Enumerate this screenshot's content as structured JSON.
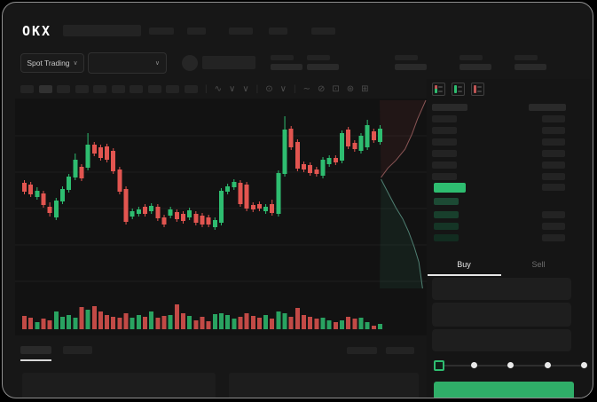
{
  "header": {
    "logo": "OKX",
    "market_selector": {
      "label": "Spot Trading",
      "chevron": "∨"
    },
    "pair_selector": {
      "chevron": "∨"
    }
  },
  "chart_toolbar": {
    "icons": [
      {
        "name": "divider",
        "glyph": "|"
      },
      {
        "name": "indicators-icon",
        "glyph": "∿"
      },
      {
        "name": "chevron-down-icon",
        "glyph": "∨"
      },
      {
        "name": "chevron-down-icon",
        "glyph": "∨"
      },
      {
        "name": "divider",
        "glyph": "|"
      },
      {
        "name": "overlay-icon",
        "glyph": "⊙"
      },
      {
        "name": "chevron-down-icon",
        "glyph": "∨"
      },
      {
        "name": "divider",
        "glyph": "|"
      },
      {
        "name": "line-tool-icon",
        "glyph": "∼"
      },
      {
        "name": "draw-tool-icon",
        "glyph": "⊘"
      },
      {
        "name": "screenshot-icon",
        "glyph": "⊡"
      },
      {
        "name": "settings-icon",
        "glyph": "⊛"
      },
      {
        "name": "fullscreen-icon",
        "glyph": "⊞"
      }
    ]
  },
  "trade_panel": {
    "buy_tab": "Buy",
    "sell_tab": "Sell",
    "slider_stops": 5,
    "slider_selected_index": 0
  },
  "colors": {
    "green": "#2ebd70",
    "red": "#e25550",
    "buy_button": "#2fae68",
    "bid_row_tints": [
      "#1c4a34",
      "#183f2c",
      "#153526",
      "#122c20"
    ],
    "depth_ask_line": "#8a5555",
    "depth_bid_line": "#4f7f72",
    "depth_ask_fill": "rgba(150,60,60,0.12)",
    "depth_bid_fill": "rgba(45,150,110,0.10)"
  },
  "chart_data": {
    "type": "candlestick+volume+depth",
    "title": "",
    "x_axis": "time (ticks not rendered - skeleton UI)",
    "y_axis": "price (ticks not rendered - skeleton UI)",
    "grid": true,
    "gridline_prices": [
      190,
      149,
      108,
      67,
      26
    ],
    "price_range": [
      0,
      232
    ],
    "candles_format": "[bodyTop, bodyBottom, high, low, color(0=red,1=green)] in price units",
    "candles": [
      [
        137,
        127,
        140,
        124,
        0
      ],
      [
        135,
        124,
        138,
        121,
        0
      ],
      [
        128,
        121,
        132,
        118,
        1
      ],
      [
        125,
        112,
        128,
        109,
        0
      ],
      [
        110,
        103,
        115,
        99,
        0
      ],
      [
        117,
        98,
        120,
        95,
        1
      ],
      [
        130,
        116,
        133,
        113,
        1
      ],
      [
        144,
        129,
        147,
        126,
        1
      ],
      [
        163,
        143,
        170,
        140,
        1
      ],
      [
        155,
        142,
        158,
        139,
        0
      ],
      [
        180,
        154,
        193,
        151,
        1
      ],
      [
        180,
        170,
        183,
        167,
        0
      ],
      [
        177,
        165,
        180,
        162,
        0
      ],
      [
        178,
        163,
        181,
        160,
        0
      ],
      [
        173,
        150,
        176,
        147,
        0
      ],
      [
        152,
        127,
        155,
        124,
        0
      ],
      [
        130,
        93,
        133,
        90,
        0
      ],
      [
        105,
        99,
        108,
        96,
        1
      ],
      [
        107,
        102,
        110,
        99,
        1
      ],
      [
        110,
        102,
        113,
        99,
        0
      ],
      [
        111,
        105,
        114,
        102,
        1
      ],
      [
        110,
        97,
        113,
        94,
        0
      ],
      [
        98,
        90,
        101,
        87,
        0
      ],
      [
        107,
        100,
        110,
        97,
        1
      ],
      [
        104,
        96,
        107,
        93,
        0
      ],
      [
        102,
        94,
        105,
        91,
        0
      ],
      [
        106,
        98,
        109,
        95,
        1
      ],
      [
        102,
        92,
        105,
        89,
        0
      ],
      [
        100,
        90,
        103,
        87,
        0
      ],
      [
        98,
        90,
        101,
        87,
        0
      ],
      [
        95,
        87,
        98,
        84,
        1
      ],
      [
        128,
        92,
        131,
        89,
        1
      ],
      [
        133,
        127,
        136,
        124,
        1
      ],
      [
        138,
        132,
        141,
        129,
        1
      ],
      [
        137,
        113,
        140,
        110,
        0
      ],
      [
        135,
        108,
        138,
        105,
        0
      ],
      [
        112,
        107,
        115,
        104,
        0
      ],
      [
        113,
        108,
        116,
        105,
        0
      ],
      [
        110,
        105,
        113,
        102,
        1
      ],
      [
        113,
        103,
        118,
        100,
        0
      ],
      [
        148,
        102,
        151,
        99,
        1
      ],
      [
        197,
        147,
        212,
        144,
        1
      ],
      [
        198,
        177,
        201,
        174,
        0
      ],
      [
        183,
        153,
        186,
        150,
        0
      ],
      [
        158,
        152,
        161,
        149,
        0
      ],
      [
        157,
        148,
        160,
        145,
        0
      ],
      [
        152,
        147,
        155,
        144,
        0
      ],
      [
        163,
        145,
        166,
        142,
        1
      ],
      [
        165,
        158,
        168,
        155,
        1
      ],
      [
        165,
        160,
        168,
        157,
        0
      ],
      [
        193,
        162,
        196,
        159,
        1
      ],
      [
        197,
        178,
        200,
        175,
        0
      ],
      [
        182,
        175,
        185,
        172,
        0
      ],
      [
        190,
        173,
        193,
        170,
        1
      ],
      [
        202,
        177,
        208,
        174,
        1
      ],
      [
        195,
        185,
        198,
        182,
        0
      ],
      [
        198,
        183,
        202,
        180,
        1
      ]
    ],
    "volumes": [
      15,
      13,
      8,
      12,
      10,
      20,
      14,
      16,
      13,
      25,
      22,
      26,
      20,
      16,
      14,
      13,
      18,
      13,
      16,
      14,
      20,
      13,
      15,
      16,
      28,
      18,
      15,
      10,
      14,
      9,
      17,
      18,
      16,
      12,
      14,
      18,
      15,
      13,
      16,
      12,
      20,
      18,
      14,
      24,
      16,
      14,
      12,
      13,
      10,
      8,
      10,
      14,
      12,
      13,
      8,
      4,
      6
    ],
    "depth": {
      "orientation": "vertical (price on y, cumulative size on x)",
      "ask_line": [
        [
          0.03,
          0.41
        ],
        [
          0.18,
          0.36
        ],
        [
          0.35,
          0.32
        ],
        [
          0.55,
          0.26
        ],
        [
          0.7,
          0.18
        ],
        [
          0.82,
          0.1
        ],
        [
          1.0,
          0.0
        ]
      ],
      "bid_line": [
        [
          0.03,
          0.42
        ],
        [
          0.2,
          0.5
        ],
        [
          0.35,
          0.57
        ],
        [
          0.5,
          0.63
        ],
        [
          0.63,
          0.7
        ],
        [
          0.75,
          0.78
        ],
        [
          0.85,
          0.86
        ],
        [
          0.93,
          1.0
        ]
      ]
    }
  }
}
